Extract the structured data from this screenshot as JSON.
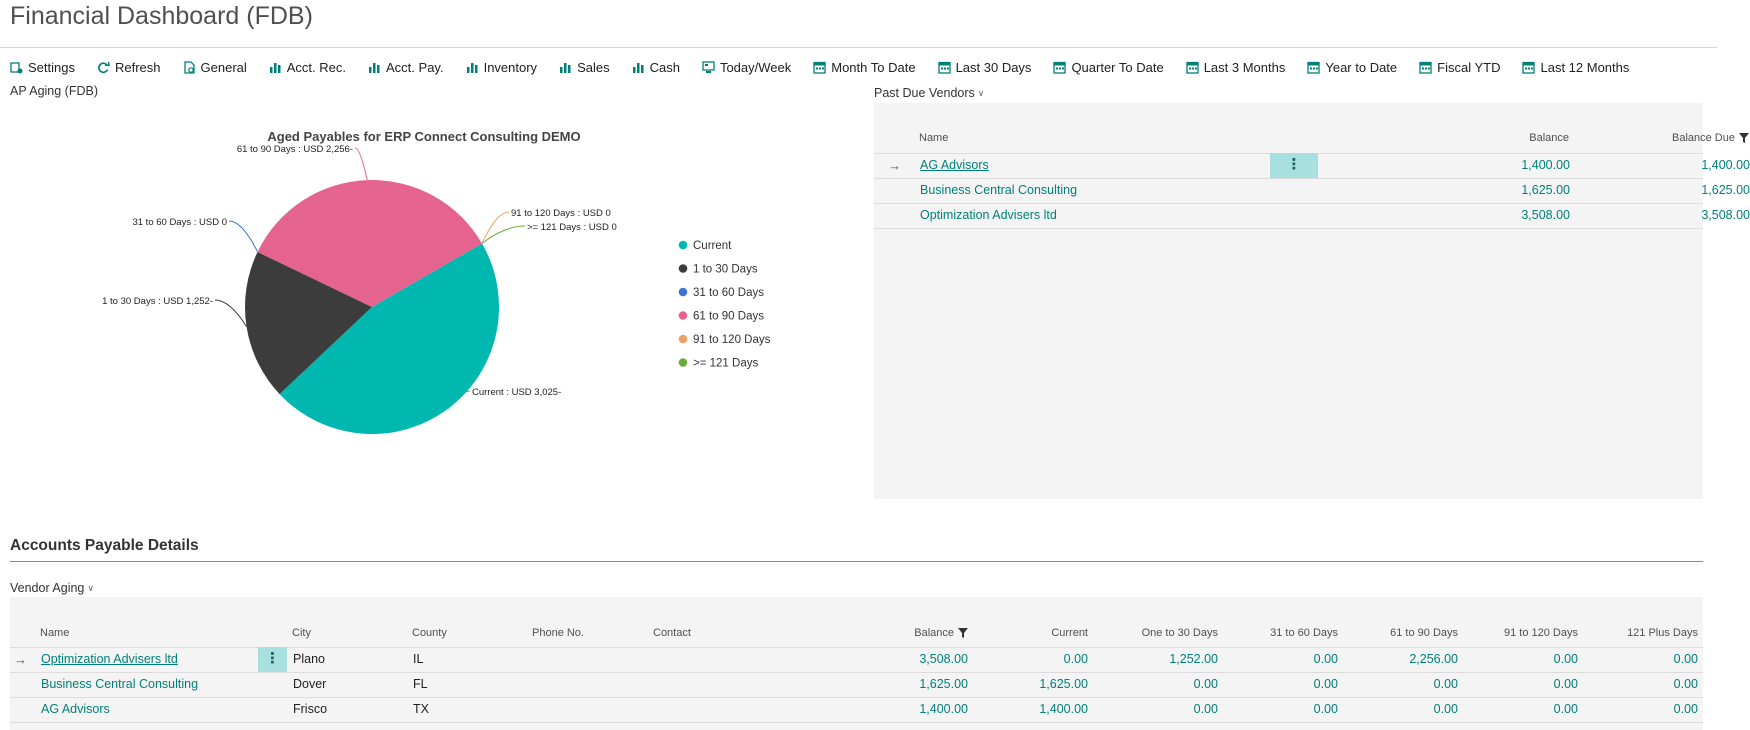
{
  "page": {
    "title": "Financial Dashboard (FDB)"
  },
  "toolbar": {
    "items": [
      {
        "label": "Settings",
        "icon": "settings-icon"
      },
      {
        "label": "Refresh",
        "icon": "refresh-icon"
      },
      {
        "label": "General",
        "icon": "document-icon"
      },
      {
        "label": "Acct. Rec.",
        "icon": "bar-chart-icon"
      },
      {
        "label": "Acct. Pay.",
        "icon": "bar-chart-icon"
      },
      {
        "label": "Inventory",
        "icon": "bar-chart-icon"
      },
      {
        "label": "Sales",
        "icon": "bar-chart-icon"
      },
      {
        "label": "Cash",
        "icon": "bar-chart-icon"
      },
      {
        "label": "Today/Week",
        "icon": "monitor-icon"
      },
      {
        "label": "Month To Date",
        "icon": "calendar-icon"
      },
      {
        "label": "Last 30 Days",
        "icon": "calendar-icon"
      },
      {
        "label": "Quarter To Date",
        "icon": "calendar-icon"
      },
      {
        "label": "Last 3 Months",
        "icon": "calendar-icon"
      },
      {
        "label": "Year to Date",
        "icon": "calendar-icon"
      },
      {
        "label": "Fiscal YTD",
        "icon": "calendar-icon"
      },
      {
        "label": "Last 12 Months",
        "icon": "calendar-icon"
      }
    ],
    "icon_color": "#00807a"
  },
  "ap_aging": {
    "label": "AP Aging (FDB)"
  },
  "chart_data": {
    "type": "pie",
    "title": "Aged Payables for ERP Connect Consulting DEMO",
    "currency": "USD",
    "legend_position": "right",
    "slices": [
      {
        "name": "Current",
        "value": 3025,
        "label": "Current : USD 3,025-",
        "color": "#00b8b0"
      },
      {
        "name": "1 to 30 Days",
        "value": 1252,
        "label": "1 to 30 Days : USD 1,252-",
        "color": "#3c3c3c"
      },
      {
        "name": "31 to 60 Days",
        "value": 0,
        "label": "31 to 60 Days : USD 0",
        "color": "#3a73d0"
      },
      {
        "name": "61 to 90 Days",
        "value": 2256,
        "label": "61 to 90 Days : USD 2,256-",
        "color": "#e5648f"
      },
      {
        "name": "91 to 120 Days",
        "value": 0,
        "label": "91 to 120 Days : USD 0",
        "color": "#f0a060"
      },
      {
        "name": ">= 121 Days",
        "value": 0,
        "label": ">= 121 Days : USD 0",
        "color": "#6aaa3a"
      }
    ]
  },
  "past_due": {
    "label": "Past Due Vendors",
    "columns": {
      "name": "Name",
      "balance": "Balance",
      "balance_due": "Balance Due"
    },
    "rows": [
      {
        "name": "AG Advisors",
        "balance": "1,400.00",
        "balance_due": "1,400.00"
      },
      {
        "name": "Business Central Consulting",
        "balance": "1,625.00",
        "balance_due": "1,625.00"
      },
      {
        "name": "Optimization Advisers ltd",
        "balance": "3,508.00",
        "balance_due": "3,508.00"
      }
    ],
    "selected_color": "#a8e0e0"
  },
  "ap_details": {
    "title": "Accounts Payable Details",
    "view_label": "Vendor Aging",
    "columns": {
      "name": "Name",
      "city": "City",
      "county": "County",
      "phone": "Phone No.",
      "contact": "Contact",
      "balance": "Balance",
      "current": "Current",
      "one_to_30": "One to 30 Days",
      "d31_60": "31 to 60 Days",
      "d61_90": "61 to 90 Days",
      "d91_120": "91 to 120 Days",
      "d121": "121 Plus Days"
    },
    "rows": [
      {
        "name": "Optimization Advisers ltd",
        "city": "Plano",
        "county": "IL",
        "phone": "",
        "contact": "",
        "balance": "3,508.00",
        "current": "0.00",
        "one_to_30": "1,252.00",
        "d31_60": "0.00",
        "d61_90": "2,256.00",
        "d91_120": "0.00",
        "d121": "0.00"
      },
      {
        "name": "Business Central Consulting",
        "city": "Dover",
        "county": "FL",
        "phone": "",
        "contact": "",
        "balance": "1,625.00",
        "current": "1,625.00",
        "one_to_30": "0.00",
        "d31_60": "0.00",
        "d61_90": "0.00",
        "d91_120": "0.00",
        "d121": "0.00"
      },
      {
        "name": "AG Advisors",
        "city": "Frisco",
        "county": "TX",
        "phone": "",
        "contact": "",
        "balance": "1,400.00",
        "current": "1,400.00",
        "one_to_30": "0.00",
        "d31_60": "0.00",
        "d61_90": "0.00",
        "d91_120": "0.00",
        "d121": "0.00"
      }
    ]
  }
}
